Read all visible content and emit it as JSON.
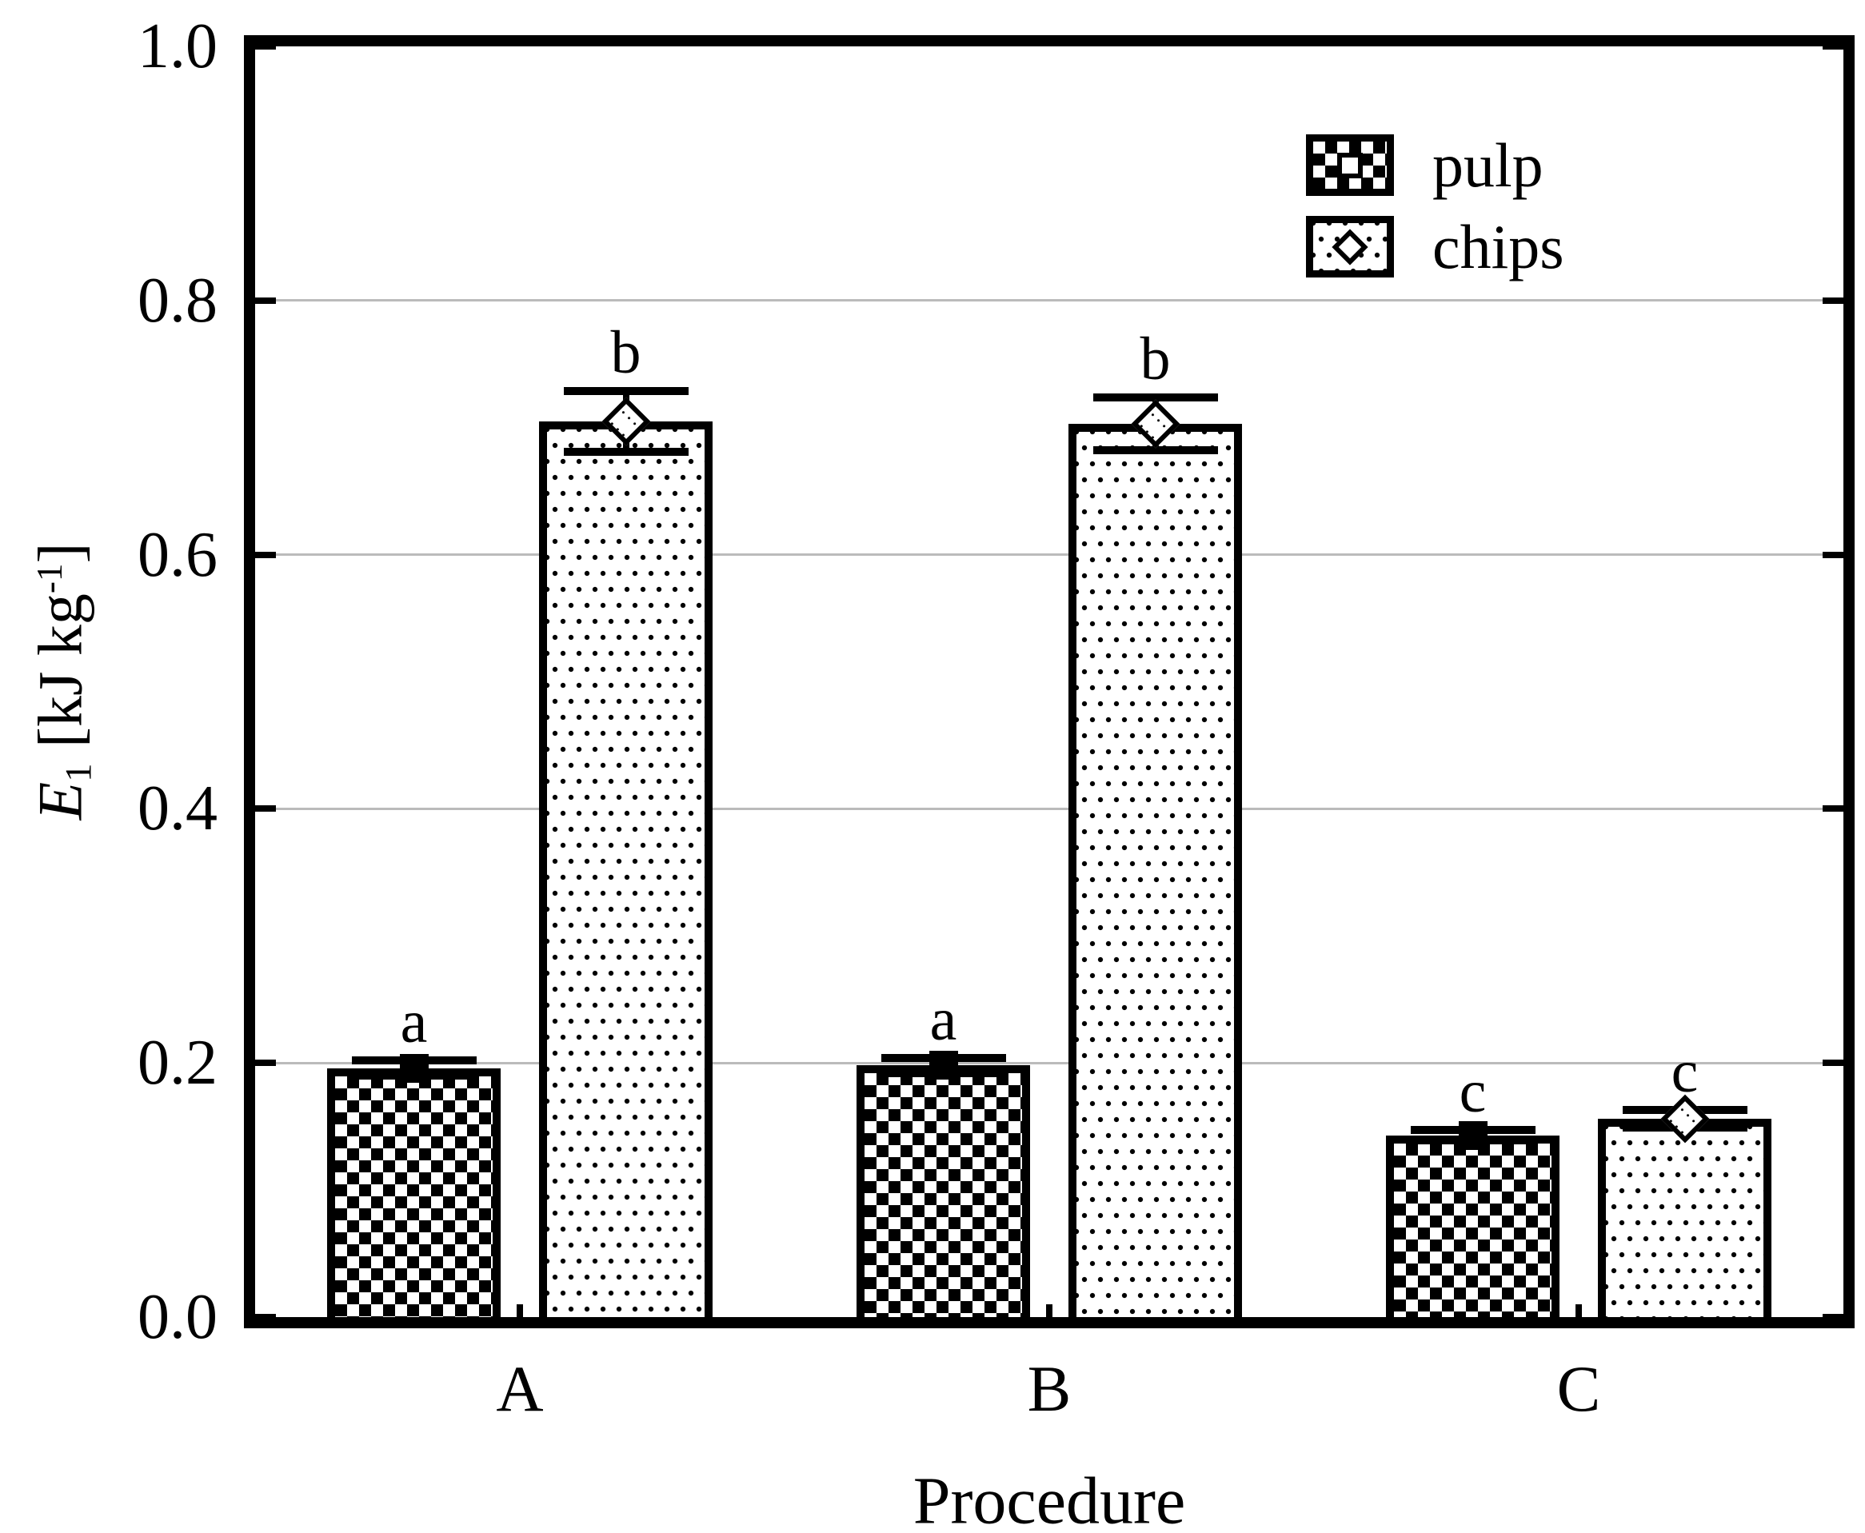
{
  "figure": {
    "bg": "#ffffff",
    "ink": "#000000",
    "grid_color": "#bbbbbb"
  },
  "y_axis": {
    "title": {
      "var": "E",
      "sub": "1",
      "mid": " [kJ kg",
      "sup": "-1",
      "end": "]"
    }
  },
  "chart_data": {
    "type": "bar",
    "title": "",
    "xlabel": "Procedure",
    "ylabel": "E1 [kJ kg-1]",
    "categories": [
      "A",
      "B",
      "C"
    ],
    "series": [
      {
        "name": "pulp",
        "pattern": "checker",
        "marker": "square",
        "values": [
          0.196,
          0.198,
          0.143
        ],
        "errors": [
          0.006,
          0.006,
          0.004
        ],
        "sig_letters": [
          "a",
          "a",
          "c"
        ]
      },
      {
        "name": "chips",
        "pattern": "dots",
        "marker": "diamond",
        "values": [
          0.705,
          0.703,
          0.156
        ],
        "errors": [
          0.024,
          0.021,
          0.007
        ],
        "sig_letters": [
          "b",
          "b",
          "c"
        ]
      }
    ],
    "ylim": [
      0.0,
      1.0
    ],
    "yticks": [
      0.0,
      0.2,
      0.4,
      0.6,
      0.8,
      1.0
    ],
    "grid": true,
    "legend_position": "top-right"
  }
}
